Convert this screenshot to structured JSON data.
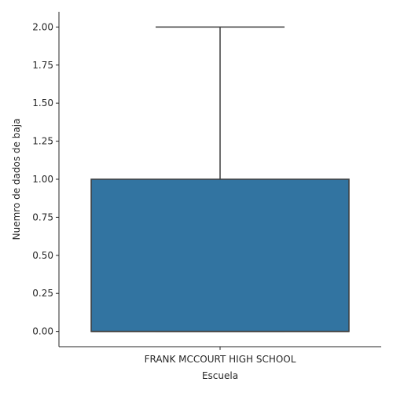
{
  "chart_data": {
    "type": "box",
    "title": "",
    "xlabel": "Escuela",
    "ylabel": "Nuemro de dados de baja",
    "categories": [
      "FRANK MCCOURT HIGH SCHOOL"
    ],
    "ylim": [
      -0.1,
      2.1
    ],
    "yticks": [
      0.0,
      0.25,
      0.5,
      0.75,
      1.0,
      1.25,
      1.5,
      1.75,
      2.0
    ],
    "ytick_labels": [
      "0.00",
      "0.25",
      "0.50",
      "0.75",
      "1.00",
      "1.25",
      "1.50",
      "1.75",
      "2.00"
    ],
    "boxes": [
      {
        "category": "FRANK MCCOURT HIGH SCHOOL",
        "whisker_low": 0.0,
        "q1": 0.0,
        "median": 0.0,
        "q3": 1.0,
        "whisker_high": 2.0,
        "color": "#3274a1"
      }
    ],
    "grid": false,
    "legend": "none"
  }
}
